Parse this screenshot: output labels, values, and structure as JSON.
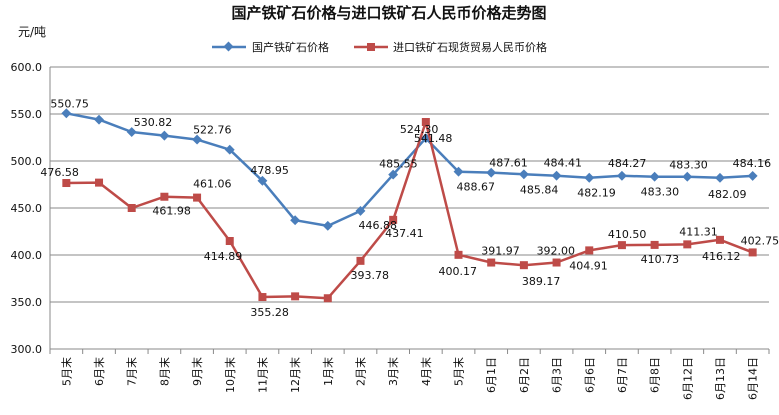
{
  "chart_data": {
    "type": "line",
    "title": "国产铁矿石价格与进口铁矿石人民币价格走势图",
    "ylabel": "元/吨",
    "ylim": [
      300,
      600
    ],
    "yticks": [
      "300.0",
      "350.0",
      "400.0",
      "450.0",
      "500.0",
      "550.0",
      "600.0"
    ],
    "grid": true,
    "legend_position": "top-center",
    "categories": [
      "5月末",
      "6月末",
      "7月末",
      "8月末",
      "9月末",
      "10月末",
      "11月末",
      "12月末",
      "1月末",
      "2月末",
      "3月末",
      "4月末",
      "5月末",
      "6月1日",
      "6月2日",
      "6月3日",
      "6月6日",
      "6月7日",
      "6月8日",
      "6月12日",
      "6月13日",
      "6月14日"
    ],
    "series": [
      {
        "name": "国产铁矿石价格",
        "color": "#4a7ebb",
        "marker": "diamond",
        "values": [
          550.75,
          544,
          530.82,
          527,
          522.76,
          512,
          478.95,
          437,
          431,
          446.88,
          485.55,
          524.3,
          488.67,
          487.61,
          485.84,
          484.41,
          482.19,
          484.27,
          483.3,
          483.3,
          482.09,
          484.16
        ],
        "labels": [
          "550.75",
          null,
          "530.82",
          null,
          "522.76",
          null,
          "478.95",
          null,
          null,
          "446.88",
          "485.55",
          "524.30",
          "488.67",
          "487.61",
          "485.84",
          "484.41",
          "482.19",
          "484.27",
          "483.30",
          "483.30",
          "482.09",
          "484.16"
        ]
      },
      {
        "name": "进口铁矿石现货贸易人民币价格",
        "color": "#be4b48",
        "marker": "square",
        "values": [
          476.58,
          477,
          450,
          461.98,
          461.06,
          414.89,
          355.28,
          356,
          354,
          393.78,
          437.41,
          541.48,
          400.17,
          391.97,
          389.17,
          392.0,
          404.91,
          410.5,
          410.73,
          411.31,
          416.12,
          402.75
        ],
        "labels": [
          "476.58",
          null,
          null,
          "461.98",
          "461.06",
          "414.89",
          "355.28",
          null,
          null,
          "393.78",
          "437.41",
          "541.48",
          "400.17",
          "391.97",
          "389.17",
          "392.00",
          "404.91",
          "410.50",
          "410.73",
          "411.31",
          "416.12",
          "402.75"
        ]
      }
    ]
  }
}
